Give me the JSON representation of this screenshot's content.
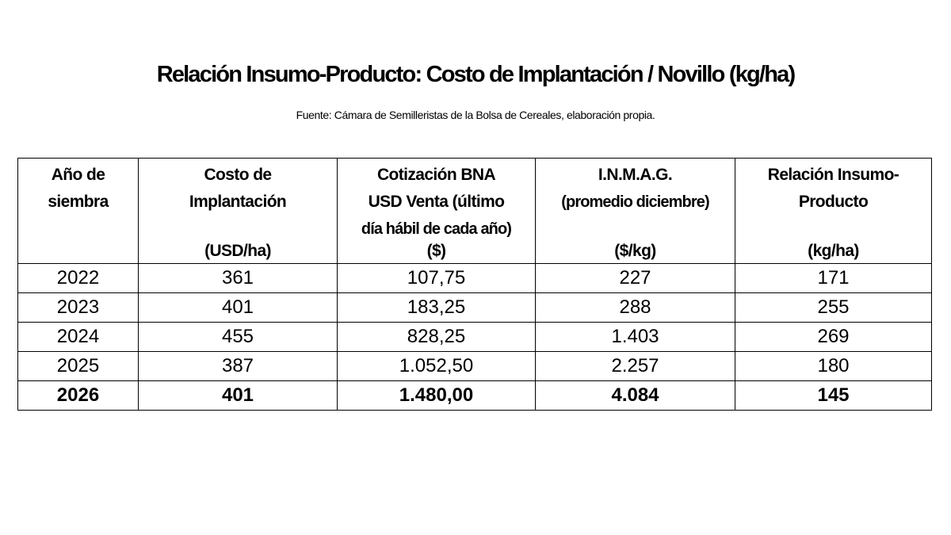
{
  "title": "Relación Insumo-Producto: Costo de Implantación / Novillo (kg/ha)",
  "source": "Fuente: Cámara de Semilleristas de la Bolsa de Cereales, elaboración propia.",
  "table": {
    "headers": [
      {
        "line1": "Año de",
        "line2": "siembra",
        "line3": "",
        "unit": ""
      },
      {
        "line1": "Costo de",
        "line2": "Implantación",
        "line3": "",
        "unit": "(USD/ha)"
      },
      {
        "line1": "Cotización BNA",
        "line2": "USD Venta (último",
        "line3": "día hábil de cada año)",
        "unit": "($)"
      },
      {
        "line1": "I.N.M.A.G.",
        "line2": "(promedio diciembre)",
        "line3": "",
        "unit": "($/kg)"
      },
      {
        "line1": "Relación Insumo-",
        "line2": "Producto",
        "line3": "",
        "unit": "(kg/ha)"
      }
    ],
    "rows": [
      {
        "year": "2022",
        "cost": "361",
        "usd": "107,75",
        "inmag": "227",
        "ratio": "171"
      },
      {
        "year": "2023",
        "cost": "401",
        "usd": "183,25",
        "inmag": "288",
        "ratio": "255"
      },
      {
        "year": "2024",
        "cost": "455",
        "usd": "828,25",
        "inmag": "1.403",
        "ratio": "269"
      },
      {
        "year": "2025",
        "cost": "387",
        "usd": "1.052,50",
        "inmag": "2.257",
        "ratio": "180"
      },
      {
        "year": "2026",
        "cost": "401",
        "usd": "1.480,00",
        "inmag": "4.084",
        "ratio": "145"
      }
    ]
  }
}
